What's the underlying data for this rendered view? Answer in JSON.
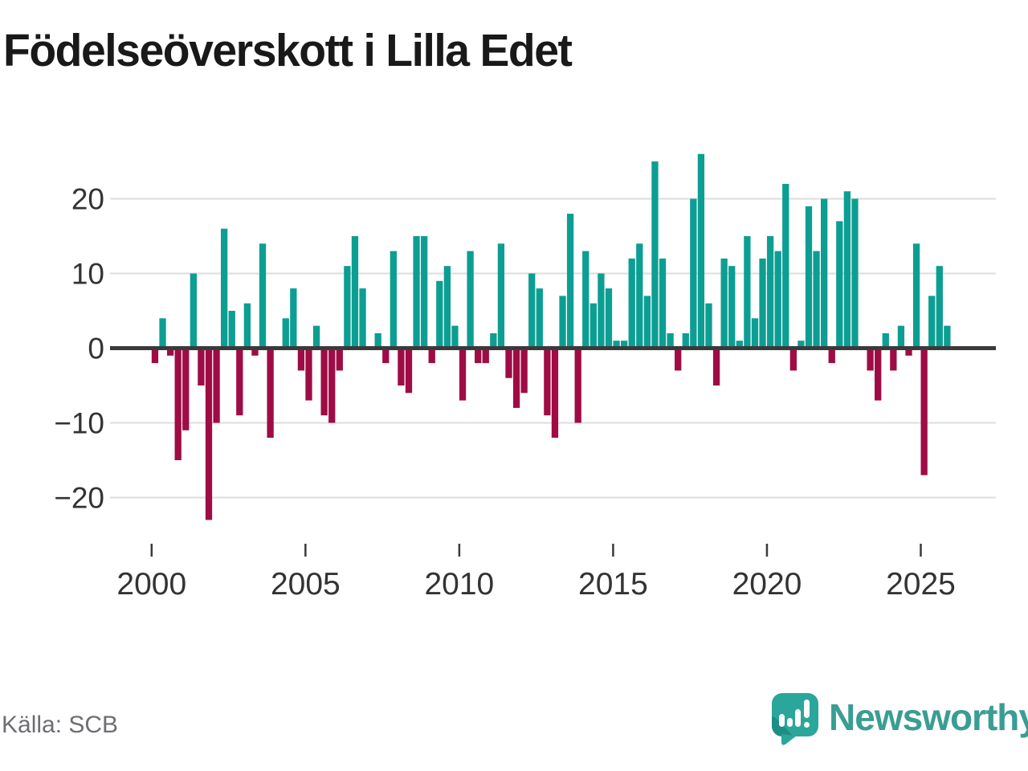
{
  "title": "Födelseöverskott i Lilla Edet",
  "source": "Källa: SCB",
  "brand": "Newsworthy",
  "colors": {
    "positive": "#0d9e93",
    "negative": "#9f0c45",
    "grid": "#e0e0e0",
    "zero_axis": "#3a3a3a",
    "tick_text": "#333333",
    "title_text": "#191919",
    "source_text": "#6e6e73",
    "brand_teal": "#3a9d93",
    "logo_teal": "#2ba69a",
    "logo_dark_teal": "#1d8d85"
  },
  "chart_data": {
    "type": "bar",
    "title": "Födelseöverskott i Lilla Edet",
    "xlabel": "",
    "ylabel": "",
    "grid": true,
    "legend": false,
    "ylim": [
      -25,
      28
    ],
    "y_ticks": [
      20,
      10,
      0,
      -10,
      -20
    ],
    "y_tick_labels": [
      "20",
      "10",
      "0",
      "−10",
      "−20"
    ],
    "x_tick_labels": [
      "2000",
      "2005",
      "2010",
      "2015",
      "2020",
      "2025"
    ],
    "x": [
      "2000 K1",
      "2000 K2",
      "2000 K3",
      "2000 K4",
      "2001 K1",
      "2001 K2",
      "2001 K3",
      "2001 K4",
      "2002 K1",
      "2002 K2",
      "2002 K3",
      "2002 K4",
      "2003 K1",
      "2003 K2",
      "2003 K3",
      "2003 K4",
      "2004 K1",
      "2004 K2",
      "2004 K3",
      "2004 K4",
      "2005 K1",
      "2005 K2",
      "2005 K3",
      "2005 K4",
      "2006 K1",
      "2006 K2",
      "2006 K3",
      "2006 K4",
      "2007 K1",
      "2007 K2",
      "2007 K3",
      "2007 K4",
      "2008 K1",
      "2008 K2",
      "2008 K3",
      "2008 K4",
      "2009 K1",
      "2009 K2",
      "2009 K3",
      "2009 K4",
      "2010 K1",
      "2010 K2",
      "2010 K3",
      "2010 K4",
      "2011 K1",
      "2011 K2",
      "2011 K3",
      "2011 K4",
      "2012 K1",
      "2012 K2",
      "2012 K3",
      "2012 K4",
      "2013 K1",
      "2013 K2",
      "2013 K3",
      "2013 K4",
      "2014 K1",
      "2014 K2",
      "2014 K3",
      "2014 K4",
      "2015 K1",
      "2015 K2",
      "2015 K3",
      "2015 K4",
      "2016 K1",
      "2016 K2",
      "2016 K3",
      "2016 K4",
      "2017 K1",
      "2017 K2",
      "2017 K3",
      "2017 K4",
      "2018 K1",
      "2018 K2",
      "2018 K3",
      "2018 K4",
      "2019 K1",
      "2019 K2",
      "2019 K3",
      "2019 K4",
      "2020 K1",
      "2020 K2",
      "2020 K3",
      "2020 K4",
      "2021 K1",
      "2021 K2",
      "2021 K3",
      "2021 K4",
      "2022 K1",
      "2022 K2",
      "2022 K3",
      "2022 K4",
      "2023 K1",
      "2023 K2",
      "2023 K3",
      "2023 K4",
      "2024 K1",
      "2024 K2",
      "2024 K3",
      "2024 K4",
      "2025 K1",
      "2025 K2",
      "2025 K3",
      "2025 K4"
    ],
    "values": [
      -2,
      4,
      -1,
      -15,
      -11,
      10,
      -5,
      -23,
      -10,
      16,
      5,
      -9,
      6,
      -1,
      14,
      -12,
      0,
      4,
      8,
      -3,
      -7,
      3,
      -9,
      -10,
      -3,
      11,
      15,
      8,
      0,
      2,
      -2,
      13,
      -5,
      -6,
      15,
      15,
      -2,
      9,
      11,
      3,
      -7,
      13,
      -2,
      -2,
      2,
      14,
      -4,
      -8,
      -6,
      10,
      8,
      -9,
      -12,
      7,
      18,
      -10,
      13,
      6,
      10,
      8,
      1,
      1,
      12,
      14,
      7,
      25,
      12,
      2,
      -3,
      2,
      20,
      26,
      6,
      -5,
      12,
      11,
      1,
      15,
      4,
      12,
      15,
      13,
      22,
      -3,
      1,
      19,
      13,
      20,
      -2,
      17,
      21,
      20,
      0,
      -3,
      -7,
      2,
      -3,
      3,
      -1,
      14,
      -17,
      7,
      11,
      3
    ]
  }
}
